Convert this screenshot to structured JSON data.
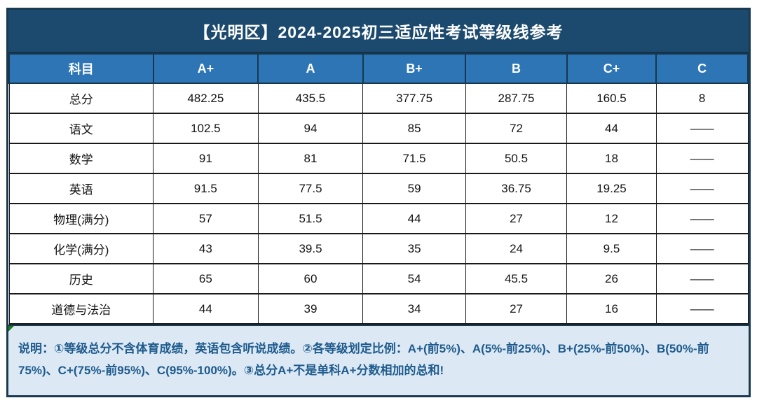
{
  "chart_data": {
    "type": "table",
    "title": "【光明区】2024-2025初三适应性考试等级线参考",
    "columns": [
      "科目",
      "A+",
      "A",
      "B+",
      "B",
      "C+",
      "C"
    ],
    "rows": [
      [
        "总分",
        "482.25",
        "435.5",
        "377.75",
        "287.75",
        "160.5",
        "8"
      ],
      [
        "语文",
        "102.5",
        "94",
        "85",
        "72",
        "44",
        "——"
      ],
      [
        "数学",
        "91",
        "81",
        "71.5",
        "50.5",
        "18",
        "——"
      ],
      [
        "英语",
        "91.5",
        "77.5",
        "59",
        "36.75",
        "19.25",
        "——"
      ],
      [
        "物理(满分)",
        "57",
        "51.5",
        "44",
        "27",
        "12",
        "——"
      ],
      [
        "化学(满分)",
        "43",
        "39.5",
        "35",
        "24",
        "9.5",
        "——"
      ],
      [
        "历史",
        "65",
        "60",
        "54",
        "45.5",
        "26",
        "——"
      ],
      [
        "道德与法治",
        "44",
        "39",
        "34",
        "27",
        "16",
        "——"
      ]
    ],
    "note": "说明：①等级总分不含体育成绩，英语包含听说成绩。②各等级划定比例：A+(前5%)、A(5%-前25%)、B+(25%-前50%)、B(50%-前75%)、C+(75%-前95%)、C(95%-100%)。③总分A+不是单科A+分数相加的总和!"
  },
  "colors": {
    "title_bg": "#1C4A6E",
    "header_bg": "#2E75B6",
    "note_bg": "#DCE9F5",
    "note_text": "#1E5A8C",
    "frame_border": "#1A3A52",
    "corner_marker_green": "#1c7a1c"
  }
}
